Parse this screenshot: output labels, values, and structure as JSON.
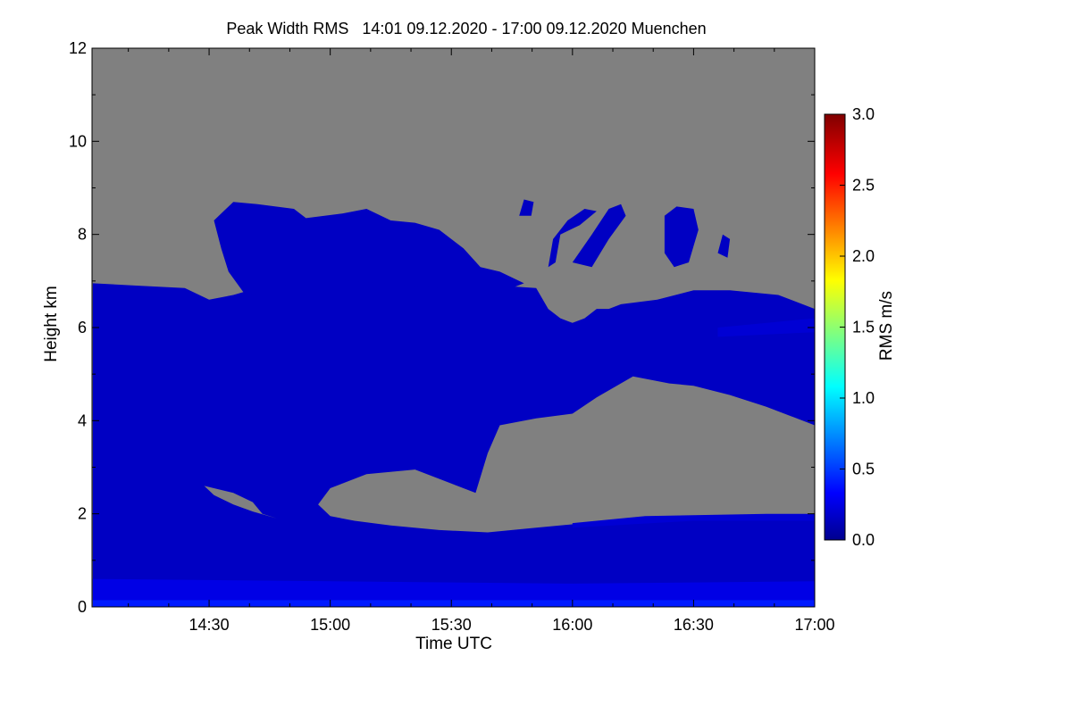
{
  "chart_data": {
    "type": "heatmap",
    "title": "Peak Width RMS   14:01 09.12.2020 - 17:00 09.12.2020 Muenchen",
    "xlabel": "Time UTC",
    "ylabel": "Height km",
    "xlim": [
      "14:01",
      "17:00"
    ],
    "ylim": [
      0,
      12
    ],
    "x_ticks": [
      {
        "label": "14:30",
        "value_min": 870
      },
      {
        "label": "15:00",
        "value_min": 900
      },
      {
        "label": "15:30",
        "value_min": 930
      },
      {
        "label": "16:00",
        "value_min": 960
      },
      {
        "label": "16:30",
        "value_min": 990
      },
      {
        "label": "17:00",
        "value_min": 1020
      }
    ],
    "y_ticks": [
      "0",
      "2",
      "4",
      "6",
      "8",
      "10",
      "12"
    ],
    "colorbar": {
      "label": "RMS m/s",
      "range": [
        0.0,
        3.0
      ],
      "ticks": [
        "0.0",
        "0.5",
        "1.0",
        "1.5",
        "2.0",
        "2.5",
        "3.0"
      ],
      "colormap": "jet",
      "no_data_color": "#808080"
    },
    "typical_value": 0.2,
    "near_surface_value": 0.45,
    "regions": [
      {
        "name": "main-echo-layer",
        "value": 0.2,
        "points": [
          [
            14.02,
            0
          ],
          [
            14.02,
            6.95
          ],
          [
            14.2,
            6.9
          ],
          [
            14.4,
            6.85
          ],
          [
            14.5,
            6.6
          ],
          [
            14.6,
            6.7
          ],
          [
            14.8,
            7.0
          ],
          [
            14.95,
            7.2
          ],
          [
            15.1,
            7.1
          ],
          [
            15.25,
            7.0
          ],
          [
            15.4,
            6.95
          ],
          [
            15.55,
            6.9
          ],
          [
            15.7,
            6.9
          ],
          [
            15.85,
            6.85
          ],
          [
            15.9,
            6.4
          ],
          [
            15.95,
            6.2
          ],
          [
            16.0,
            6.1
          ],
          [
            16.05,
            6.2
          ],
          [
            16.1,
            6.4
          ],
          [
            16.15,
            6.4
          ],
          [
            16.2,
            6.5
          ],
          [
            16.35,
            6.6
          ],
          [
            16.5,
            6.8
          ],
          [
            16.65,
            6.8
          ],
          [
            16.85,
            6.7
          ],
          [
            17.0,
            6.4
          ],
          [
            17.0,
            0
          ]
        ]
      },
      {
        "name": "upper-cloud-layer",
        "value": 0.2,
        "points": [
          [
            14.52,
            8.3
          ],
          [
            14.6,
            8.7
          ],
          [
            14.7,
            8.65
          ],
          [
            14.85,
            8.55
          ],
          [
            14.9,
            8.35
          ],
          [
            15.05,
            8.45
          ],
          [
            15.15,
            8.55
          ],
          [
            15.25,
            8.3
          ],
          [
            15.35,
            8.25
          ],
          [
            15.45,
            8.1
          ],
          [
            15.55,
            7.7
          ],
          [
            15.62,
            7.3
          ],
          [
            15.7,
            7.2
          ],
          [
            15.8,
            6.95
          ],
          [
            15.7,
            6.75
          ],
          [
            15.45,
            6.85
          ],
          [
            15.2,
            6.95
          ],
          [
            15.0,
            7.05
          ],
          [
            14.85,
            7.0
          ],
          [
            14.75,
            6.75
          ],
          [
            14.65,
            6.7
          ],
          [
            14.58,
            7.2
          ],
          [
            14.55,
            7.7
          ]
        ]
      },
      {
        "name": "cell-1",
        "value": 0.2,
        "points": [
          [
            15.95,
            8.0
          ],
          [
            16.03,
            8.2
          ],
          [
            16.1,
            8.5
          ],
          [
            16.05,
            8.55
          ],
          [
            15.98,
            8.3
          ],
          [
            15.92,
            7.9
          ],
          [
            15.9,
            7.3
          ],
          [
            15.93,
            7.4
          ]
        ]
      },
      {
        "name": "cell-2",
        "value": 0.2,
        "points": [
          [
            16.0,
            7.4
          ],
          [
            16.08,
            8.0
          ],
          [
            16.15,
            8.55
          ],
          [
            16.2,
            8.65
          ],
          [
            16.22,
            8.4
          ],
          [
            16.15,
            7.9
          ],
          [
            16.08,
            7.3
          ]
        ]
      },
      {
        "name": "cell-3",
        "value": 0.2,
        "points": [
          [
            16.38,
            8.4
          ],
          [
            16.43,
            8.6
          ],
          [
            16.5,
            8.55
          ],
          [
            16.52,
            8.1
          ],
          [
            16.48,
            7.4
          ],
          [
            16.42,
            7.3
          ],
          [
            16.38,
            7.6
          ]
        ]
      },
      {
        "name": "cell-4",
        "value": 0.2,
        "points": [
          [
            15.78,
            8.4
          ],
          [
            15.8,
            8.75
          ],
          [
            15.84,
            8.7
          ],
          [
            15.83,
            8.4
          ]
        ]
      },
      {
        "name": "cell-5",
        "value": 0.2,
        "points": [
          [
            16.6,
            7.6
          ],
          [
            16.62,
            8.0
          ],
          [
            16.65,
            7.9
          ],
          [
            16.64,
            7.5
          ]
        ]
      },
      {
        "name": "clear-gap-1",
        "value": null,
        "points": [
          [
            14.95,
            2.2
          ],
          [
            15.0,
            2.55
          ],
          [
            15.15,
            2.85
          ],
          [
            15.35,
            2.95
          ],
          [
            15.5,
            2.65
          ],
          [
            15.6,
            2.45
          ],
          [
            15.65,
            3.3
          ],
          [
            15.7,
            3.9
          ],
          [
            15.85,
            4.05
          ],
          [
            16.0,
            4.15
          ],
          [
            16.1,
            4.5
          ],
          [
            16.25,
            4.95
          ],
          [
            16.4,
            4.8
          ],
          [
            16.5,
            4.75
          ],
          [
            16.65,
            4.55
          ],
          [
            16.8,
            4.3
          ],
          [
            16.9,
            4.1
          ],
          [
            17.0,
            3.9
          ],
          [
            17.0,
            1.95
          ],
          [
            16.8,
            1.98
          ],
          [
            16.5,
            1.95
          ],
          [
            16.25,
            1.9
          ],
          [
            16.05,
            1.8
          ],
          [
            15.85,
            1.7
          ],
          [
            15.65,
            1.6
          ],
          [
            15.45,
            1.65
          ],
          [
            15.25,
            1.75
          ],
          [
            15.1,
            1.85
          ],
          [
            15.0,
            1.95
          ]
        ]
      },
      {
        "name": "clear-gap-2",
        "value": null,
        "points": [
          [
            14.48,
            2.6
          ],
          [
            14.6,
            2.45
          ],
          [
            14.68,
            2.25
          ],
          [
            14.72,
            2.0
          ],
          [
            14.78,
            1.9
          ],
          [
            14.68,
            2.05
          ],
          [
            14.6,
            2.2
          ],
          [
            14.52,
            2.4
          ]
        ]
      },
      {
        "name": "surface-band",
        "value": 0.45,
        "points": [
          [
            14.02,
            0
          ],
          [
            14.02,
            0.15
          ],
          [
            17.0,
            0.15
          ],
          [
            17.0,
            0
          ]
        ]
      },
      {
        "name": "low-band",
        "value": 0.3,
        "points": [
          [
            14.02,
            0.15
          ],
          [
            14.02,
            0.6
          ],
          [
            15.0,
            0.55
          ],
          [
            16.0,
            0.5
          ],
          [
            17.0,
            0.55
          ],
          [
            17.0,
            0.15
          ]
        ]
      },
      {
        "name": "band-2km",
        "value": 0.25,
        "points": [
          [
            16.0,
            1.8
          ],
          [
            16.3,
            1.95
          ],
          [
            16.8,
            2.0
          ],
          [
            17.0,
            2.0
          ],
          [
            17.0,
            1.85
          ],
          [
            16.5,
            1.85
          ],
          [
            16.0,
            1.7
          ]
        ]
      },
      {
        "name": "band-6km",
        "value": 0.25,
        "points": [
          [
            16.6,
            6.0
          ],
          [
            17.0,
            6.2
          ],
          [
            17.0,
            5.9
          ],
          [
            16.6,
            5.8
          ]
        ]
      }
    ]
  }
}
